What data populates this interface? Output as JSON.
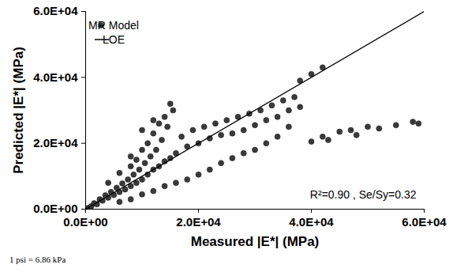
{
  "chart_data": {
    "type": "scatter",
    "x_label": "Measured |E*| (MPa)",
    "y_label": "Predicted |E*| (MPa)",
    "xlim": [
      0,
      60000
    ],
    "ylim": [
      0,
      60000
    ],
    "xticks": [
      {
        "value": 0,
        "label": "0.0E+00"
      },
      {
        "value": 20000,
        "label": "2.0E+04"
      },
      {
        "value": 40000,
        "label": "4.0E+04"
      },
      {
        "value": 60000,
        "label": "6.0E+04"
      }
    ],
    "yticks": [
      {
        "value": 0,
        "label": "0.0E+00"
      },
      {
        "value": 20000,
        "label": "2.0E+04"
      },
      {
        "value": 40000,
        "label": "4.0E+04"
      },
      {
        "value": 60000,
        "label": "6.0E+04"
      }
    ],
    "grid": false,
    "legend": "top-left",
    "annotations": [
      "R²=0.90 , Se/Sy=0.32"
    ],
    "footnote": "1 psi = 6.86 kPa",
    "series": [
      {
        "name": "MR Model",
        "type": "scatter",
        "color": "#3a3a3a",
        "marker": "circle",
        "x": [
          500,
          1000,
          1500,
          2000,
          2500,
          3000,
          3500,
          4000,
          4500,
          5000,
          5500,
          6000,
          6500,
          7000,
          7500,
          8000,
          8500,
          9000,
          9500,
          10000,
          10500,
          11000,
          11500,
          12000,
          12500,
          13000,
          13500,
          14000,
          14500,
          15000,
          15500,
          15000,
          14000,
          13000,
          12000,
          11000,
          10000,
          9000,
          8000,
          16000,
          17000,
          18000,
          19000,
          20000,
          21000,
          22000,
          23000,
          24000,
          25000,
          26000,
          27000,
          28000,
          29000,
          30000,
          31000,
          32000,
          33000,
          34000,
          35000,
          36000,
          37000,
          38000,
          38000,
          40000,
          42000,
          36000,
          34000,
          32000,
          30000,
          28000,
          26000,
          24000,
          22000,
          20000,
          18000,
          16000,
          14000,
          12000,
          10000,
          8000,
          6000,
          40000,
          42000,
          43000,
          45000,
          47000,
          48000,
          50000,
          52000,
          55000,
          58000,
          59000,
          4000,
          6000,
          8000,
          10000,
          12000
        ],
        "values": [
          400,
          900,
          1800,
          1500,
          3000,
          2600,
          4200,
          3500,
          5200,
          4300,
          6500,
          5200,
          7800,
          6000,
          9000,
          7000,
          10500,
          8000,
          12000,
          9000,
          14000,
          10500,
          16000,
          12000,
          18000,
          13000,
          21000,
          14500,
          25000,
          15500,
          30000,
          32000,
          28000,
          26000,
          23000,
          20000,
          18000,
          15000,
          13000,
          17000,
          22000,
          19000,
          24000,
          20000,
          25000,
          21500,
          26000,
          22500,
          27000,
          23000,
          28000,
          24000,
          29000,
          25500,
          30000,
          27000,
          31500,
          28000,
          33000,
          30000,
          34000,
          31000,
          39000,
          41000,
          43000,
          25000,
          22000,
          20000,
          18000,
          17000,
          15500,
          14000,
          12000,
          10500,
          9000,
          8000,
          7000,
          5500,
          4500,
          3000,
          2200,
          20500,
          22000,
          21000,
          23500,
          24000,
          22500,
          25000,
          24500,
          25500,
          26500,
          26000,
          8000,
          11000,
          16000,
          24000,
          27000
        ]
      },
      {
        "name": "LOE",
        "type": "line",
        "color": "#000000",
        "line_style": "solid",
        "x": [
          0,
          60000
        ],
        "values": [
          0,
          60000
        ]
      }
    ]
  }
}
